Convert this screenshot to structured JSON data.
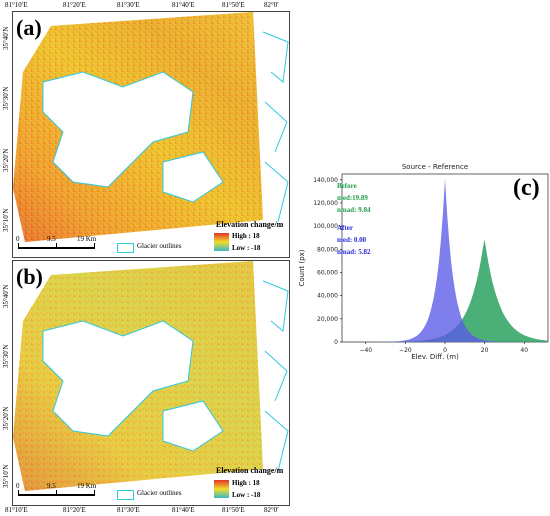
{
  "maps": {
    "x_ticks": [
      "81°10′E",
      "81°20′E",
      "81°30′E",
      "81°40′E",
      "81°50′E",
      "82°0′"
    ],
    "y_ticks": [
      "35°40′N",
      "35°30′N",
      "35°20′N",
      "35°10′N"
    ],
    "panel_a": "(a)",
    "panel_b": "(b)",
    "legend_title": "Elevation change/m",
    "legend_high": "High : 18",
    "legend_low": "Low : -18",
    "glacier_label": "Glacier outlines",
    "scale_ticks": [
      "0",
      "9.5",
      "19 Km"
    ],
    "colors": {
      "glacier_outline": "#2ec8e0",
      "high": "#e0342a",
      "mid": "#f0dc2a",
      "low": "#3bb8c8"
    }
  },
  "panel_c": "(c)",
  "chart_data": {
    "type": "area",
    "title": "Source - Reference",
    "xlabel": "Elev. Diff. (m)",
    "ylabel": "Count (px)",
    "xlim": [
      -52,
      52
    ],
    "ylim": [
      0,
      145000
    ],
    "x_ticks": [
      -40,
      -20,
      0,
      20,
      40
    ],
    "y_ticks": [
      0,
      20000,
      40000,
      60000,
      80000,
      100000,
      120000,
      140000
    ],
    "y_tick_labels": [
      "0",
      "20,000",
      "40,000",
      "60,000",
      "80,000",
      "100,000",
      "120,000",
      "140,000"
    ],
    "series": [
      {
        "name": "Before",
        "color": "#2ca25f",
        "peak": 90000,
        "center": 19.89,
        "width": 9.84
      },
      {
        "name": "After",
        "color": "#5a5ae8",
        "peak": 141000,
        "center": 0.0,
        "width": 5.82
      }
    ],
    "annotations": {
      "before_title": "Before",
      "before_med": "med:19.89",
      "before_nmad": "nmad: 9.84",
      "after_title": "After",
      "after_med": "med: 0.00",
      "after_nmad": "nmad: 5.82",
      "before_color": "#1f9e4a",
      "after_color": "#2b2bd8"
    }
  }
}
